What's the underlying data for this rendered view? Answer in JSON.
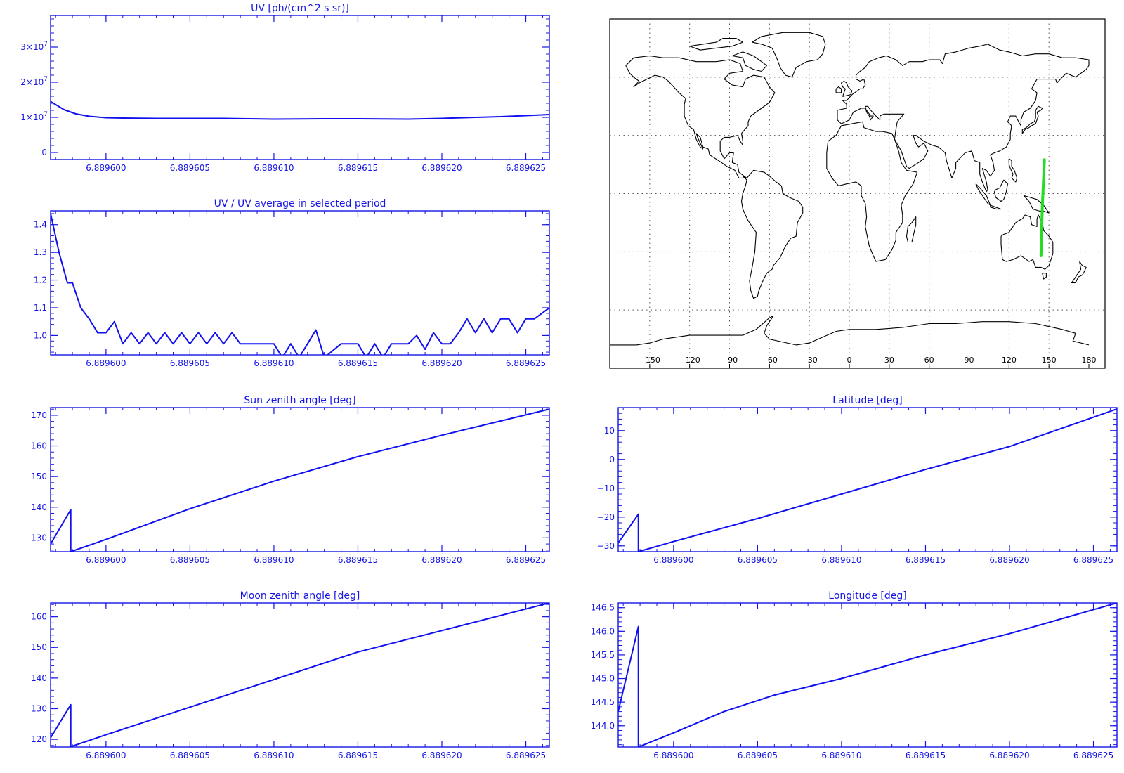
{
  "colors": {
    "axis": "#1515e6",
    "series": "#1010f0",
    "map_ink": "#000000",
    "track": "#22dd22",
    "grid": "#555555"
  },
  "chart_data": [
    {
      "id": "uv",
      "type": "line",
      "title": "UV [ph/(cm^2 s sr)]",
      "xlim": [
        6.8895967,
        6.8896264
      ],
      "x_tick_labels": [
        "6.889600",
        "6.889605",
        "6.889610",
        "6.889615",
        "6.889620",
        "6.889625"
      ],
      "x_ticks": [
        6.8896,
        6.889605,
        6.88961,
        6.889615,
        6.88962,
        6.889625
      ],
      "ylim": [
        -2000000.0,
        39000000.0
      ],
      "y_ticks": [
        0,
        10000000.0,
        20000000.0,
        30000000.0
      ],
      "y_tick_labels": [
        "0",
        "1×10",
        "2×10",
        "3×10"
      ],
      "y_tick_exponent": "7",
      "series": [
        {
          "x": [
            6.8895967,
            6.8895975,
            6.8895982,
            6.889599,
            6.8896,
            6.889601,
            6.889603,
            6.889605,
            6.889607,
            6.88961,
            6.889613,
            6.889615,
            6.889618,
            6.88962,
            6.889622,
            6.8896235,
            6.889625,
            6.8896264
          ],
          "y": [
            14500000.0,
            12200000.0,
            11000000.0,
            10300000.0,
            9900000.0,
            9800000.0,
            9700000.0,
            9700000.0,
            9700000.0,
            9500000.0,
            9600000.0,
            9600000.0,
            9500000.0,
            9700000.0,
            10000000.0,
            10200000.0,
            10500000.0,
            10800000.0
          ]
        }
      ]
    },
    {
      "id": "uv-ratio",
      "type": "line",
      "title": "UV / UV average in selected period",
      "xlim": [
        6.8895967,
        6.8896264
      ],
      "x_tick_labels": [
        "6.889600",
        "6.889605",
        "6.889610",
        "6.889615",
        "6.889620",
        "6.889625"
      ],
      "x_ticks": [
        6.8896,
        6.889605,
        6.88961,
        6.889615,
        6.88962,
        6.889625
      ],
      "ylim": [
        0.93,
        1.45
      ],
      "y_ticks": [
        1.0,
        1.1,
        1.2,
        1.3,
        1.4
      ],
      "y_tick_labels": [
        "1.0",
        "1.1",
        "1.2",
        "1.3",
        "1.4"
      ],
      "series": [
        {
          "x": [
            6.8895967,
            6.8895972,
            6.8895977,
            6.889598,
            6.8895985,
            6.889599,
            6.8895995,
            6.8896,
            6.8896005,
            6.889601,
            6.8896015,
            6.889602,
            6.8896025,
            6.889603,
            6.8896035,
            6.889604,
            6.8896045,
            6.889605,
            6.8896055,
            6.889606,
            6.8896065,
            6.889607,
            6.8896075,
            6.889608,
            6.889609,
            6.88961,
            6.8896105,
            6.889611,
            6.8896115,
            6.889612,
            6.8896125,
            6.889613,
            6.889614,
            6.8896145,
            6.889615,
            6.8896155,
            6.889616,
            6.8896165,
            6.889617,
            6.889618,
            6.8896185,
            6.889619,
            6.8896195,
            6.88962,
            6.8896205,
            6.889621,
            6.8896215,
            6.889622,
            6.8896225,
            6.889623,
            6.8896235,
            6.889624,
            6.8896245,
            6.889625,
            6.8896255,
            6.8896264
          ],
          "y": [
            1.44,
            1.3,
            1.19,
            1.19,
            1.1,
            1.06,
            1.01,
            1.01,
            1.05,
            0.97,
            1.01,
            0.97,
            1.01,
            0.97,
            1.01,
            0.97,
            1.01,
            0.97,
            1.01,
            0.97,
            1.01,
            0.97,
            1.01,
            0.97,
            0.97,
            0.97,
            0.92,
            0.97,
            0.92,
            0.97,
            1.02,
            0.92,
            0.97,
            0.97,
            0.97,
            0.92,
            0.97,
            0.92,
            0.97,
            0.97,
            1.0,
            0.95,
            1.01,
            0.97,
            0.97,
            1.01,
            1.06,
            1.01,
            1.06,
            1.01,
            1.06,
            1.06,
            1.01,
            1.06,
            1.06,
            1.1
          ]
        }
      ]
    },
    {
      "id": "sun-zenith",
      "type": "line",
      "title": "Sun zenith angle [deg]",
      "xlim": [
        6.8895967,
        6.8896264
      ],
      "x_tick_labels": [
        "6.889600",
        "6.889605",
        "6.889610",
        "6.889615",
        "6.889620",
        "6.889625"
      ],
      "x_ticks": [
        6.8896,
        6.889605,
        6.88961,
        6.889615,
        6.88962,
        6.889625
      ],
      "ylim": [
        125.5,
        172.5
      ],
      "y_ticks": [
        130,
        140,
        150,
        160,
        170
      ],
      "y_tick_labels": [
        "130",
        "140",
        "150",
        "160",
        "170"
      ],
      "series": [
        {
          "x": [
            6.8895967,
            6.8895979,
            6.8895979,
            6.8896,
            6.889605,
            6.88961,
            6.889615,
            6.88962,
            6.8896264
          ],
          "y": [
            128,
            139.2,
            125.5,
            129.5,
            139.5,
            148.5,
            156.5,
            163.5,
            172
          ]
        }
      ]
    },
    {
      "id": "moon-zenith",
      "type": "line",
      "title": "Moon zenith angle [deg]",
      "xlim": [
        6.8895967,
        6.8896264
      ],
      "x_tick_labels": [
        "6.889600",
        "6.889605",
        "6.889610",
        "6.889615",
        "6.889620",
        "6.889625"
      ],
      "x_ticks": [
        6.8896,
        6.889605,
        6.88961,
        6.889615,
        6.88962,
        6.889625
      ],
      "ylim": [
        117.5,
        164.5
      ],
      "y_ticks": [
        120,
        130,
        140,
        150,
        160
      ],
      "y_tick_labels": [
        "120",
        "130",
        "140",
        "150",
        "160"
      ],
      "series": [
        {
          "x": [
            6.8895967,
            6.8895979,
            6.8895979,
            6.8896,
            6.889605,
            6.88961,
            6.889615,
            6.88962,
            6.8896264
          ],
          "y": [
            120.5,
            131.3,
            117.6,
            121.5,
            130.5,
            139.5,
            148.5,
            155.5,
            164.5
          ]
        }
      ]
    },
    {
      "id": "latitude",
      "type": "line",
      "title": "Latitude [deg]",
      "xlim": [
        6.8895967,
        6.8896264
      ],
      "x_tick_labels": [
        "6.889600",
        "6.889605",
        "6.889610",
        "6.889615",
        "6.889620",
        "6.889625"
      ],
      "x_ticks": [
        6.8896,
        6.889605,
        6.88961,
        6.889615,
        6.88962,
        6.889625
      ],
      "ylim": [
        -32,
        18
      ],
      "y_ticks": [
        -30,
        -20,
        -10,
        0,
        10
      ],
      "y_tick_labels": [
        "−30",
        "−20",
        "−10",
        "0",
        "10"
      ],
      "series": [
        {
          "x": [
            6.8895967,
            6.8895979,
            6.8895979,
            6.8896,
            6.889605,
            6.88961,
            6.889615,
            6.88962,
            6.8896264
          ],
          "y": [
            -29,
            -19,
            -32,
            -28.5,
            -20.5,
            -12,
            -3.5,
            4.5,
            17.5
          ]
        }
      ]
    },
    {
      "id": "longitude",
      "type": "line",
      "title": "Longitude [deg]",
      "xlim": [
        6.8895967,
        6.8896264
      ],
      "x_tick_labels": [
        "6.889600",
        "6.889605",
        "6.889610",
        "6.889615",
        "6.889620",
        "6.889625"
      ],
      "x_ticks": [
        6.8896,
        6.889605,
        6.88961,
        6.889615,
        6.88962,
        6.889625
      ],
      "ylim": [
        143.55,
        146.6
      ],
      "y_ticks": [
        144.0,
        144.5,
        145.0,
        145.5,
        146.0,
        146.5
      ],
      "y_tick_labels": [
        "144.0",
        "144.5",
        "145.0",
        "145.5",
        "146.0",
        "146.5"
      ],
      "series": [
        {
          "x": [
            6.8895967,
            6.8895979,
            6.8895979,
            6.8896,
            6.889603,
            6.889606,
            6.88961,
            6.889615,
            6.88962,
            6.8896264
          ],
          "y": [
            144.3,
            146.1,
            143.55,
            143.85,
            144.3,
            144.65,
            145.0,
            145.5,
            145.95,
            146.6
          ]
        }
      ]
    }
  ],
  "map": {
    "lon_range": [
      -180,
      180
    ],
    "lat_range": [
      -90,
      90
    ],
    "grid_lons": [
      -150,
      -120,
      -90,
      -60,
      -30,
      0,
      30,
      60,
      90,
      120,
      150
    ],
    "grid_lats": [
      -60,
      -30,
      0,
      30,
      60
    ],
    "lon_tick_labels": [
      "−150",
      "−120",
      "−90",
      "−60",
      "−30",
      "0",
      "30",
      "60",
      "90",
      "120",
      "150",
      "180"
    ],
    "lon_tick_values": [
      -150,
      -120,
      -90,
      -60,
      -30,
      0,
      30,
      60,
      90,
      120,
      150,
      180
    ],
    "track": {
      "lon": [
        144.0,
        145.0,
        146.6
      ],
      "lat": [
        -32,
        -7,
        17.5
      ]
    }
  }
}
